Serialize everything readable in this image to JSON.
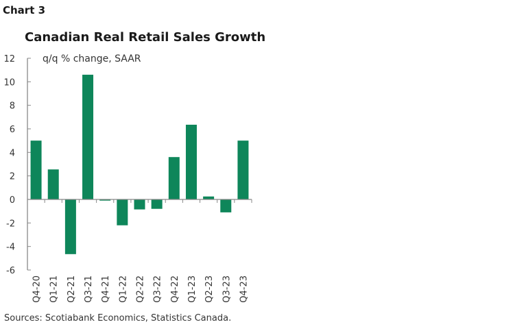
{
  "chart_data": {
    "type": "bar",
    "label": "Chart 3",
    "title": "Canadian Real Retail Sales Growth",
    "ylabel": "q/q % change, SAAR",
    "xlabel": "",
    "categories": [
      "Q4-20",
      "Q1-21",
      "Q2-21",
      "Q3-21",
      "Q4-21",
      "Q1-22",
      "Q2-22",
      "Q3-22",
      "Q4-22",
      "Q1-23",
      "Q2-23",
      "Q3-23",
      "Q4-23"
    ],
    "values": [
      5.0,
      2.55,
      -4.65,
      10.6,
      -0.1,
      -2.2,
      -0.85,
      -0.8,
      3.6,
      6.35,
      0.25,
      -1.1,
      5.0
    ],
    "ylim": [
      -6,
      12
    ],
    "yticks": [
      -6,
      -4,
      -2,
      0,
      2,
      4,
      6,
      8,
      10,
      12
    ],
    "grid": false,
    "bar_color": "#0e865a",
    "source": "Sources: Scotiabank Economics, Statistics Canada."
  }
}
